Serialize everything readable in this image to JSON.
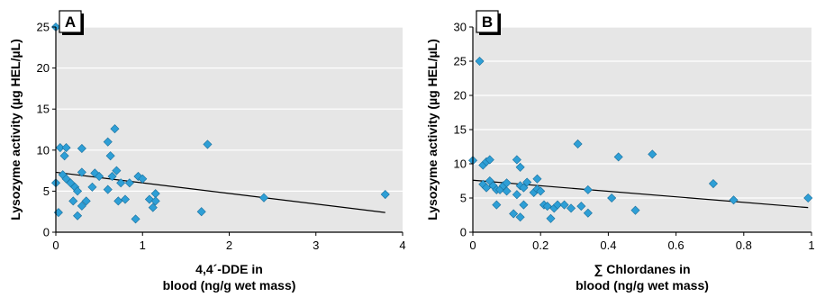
{
  "chart_data": [
    {
      "type": "scatter",
      "panel_label": "A",
      "xlabel_line1": "4,4´-DDE in",
      "xlabel_line2": "blood (ng/g wet mass)",
      "ylabel": "Lysozyme activity (µg HEL/µL)",
      "xlim": [
        0,
        4
      ],
      "ylim": [
        0,
        25
      ],
      "xticks": [
        "0",
        "1",
        "2",
        "3",
        "4"
      ],
      "yticks": [
        "0",
        "5",
        "10",
        "15",
        "20",
        "25"
      ],
      "grid": "horizontal",
      "point_color": "#2e9fd6",
      "plot_bg": "#e6e6e6",
      "trendline": {
        "x": [
          0,
          3.8
        ],
        "y": [
          7.3,
          2.4
        ]
      },
      "points": [
        {
          "x": 0.0,
          "y": 25.0
        },
        {
          "x": 0.0,
          "y": 6.0
        },
        {
          "x": 0.03,
          "y": 2.4
        },
        {
          "x": 0.05,
          "y": 10.3
        },
        {
          "x": 0.08,
          "y": 7.0
        },
        {
          "x": 0.1,
          "y": 9.3
        },
        {
          "x": 0.12,
          "y": 10.3
        },
        {
          "x": 0.12,
          "y": 6.5
        },
        {
          "x": 0.17,
          "y": 6.0
        },
        {
          "x": 0.2,
          "y": 3.8
        },
        {
          "x": 0.22,
          "y": 5.5
        },
        {
          "x": 0.25,
          "y": 5.0
        },
        {
          "x": 0.25,
          "y": 2.0
        },
        {
          "x": 0.3,
          "y": 7.3
        },
        {
          "x": 0.3,
          "y": 10.2
        },
        {
          "x": 0.3,
          "y": 3.2
        },
        {
          "x": 0.35,
          "y": 3.8
        },
        {
          "x": 0.42,
          "y": 5.5
        },
        {
          "x": 0.45,
          "y": 7.2
        },
        {
          "x": 0.5,
          "y": 6.8
        },
        {
          "x": 0.6,
          "y": 11.0
        },
        {
          "x": 0.6,
          "y": 5.2
        },
        {
          "x": 0.63,
          "y": 9.3
        },
        {
          "x": 0.65,
          "y": 6.8
        },
        {
          "x": 0.68,
          "y": 12.6
        },
        {
          "x": 0.7,
          "y": 7.5
        },
        {
          "x": 0.72,
          "y": 3.8
        },
        {
          "x": 0.75,
          "y": 6.0
        },
        {
          "x": 0.8,
          "y": 4.0
        },
        {
          "x": 0.85,
          "y": 6.0
        },
        {
          "x": 0.92,
          "y": 1.6
        },
        {
          "x": 0.95,
          "y": 6.8
        },
        {
          "x": 1.0,
          "y": 6.5
        },
        {
          "x": 1.08,
          "y": 4.0
        },
        {
          "x": 1.12,
          "y": 3.0
        },
        {
          "x": 1.15,
          "y": 4.7
        },
        {
          "x": 1.15,
          "y": 3.8
        },
        {
          "x": 1.68,
          "y": 2.5
        },
        {
          "x": 1.75,
          "y": 10.7
        },
        {
          "x": 2.4,
          "y": 4.2
        },
        {
          "x": 3.8,
          "y": 4.6
        }
      ]
    },
    {
      "type": "scatter",
      "panel_label": "B",
      "xlabel_line1": "∑ Chlordanes in",
      "xlabel_line2": "blood (ng/g wet mass)",
      "ylabel": "Lysozyme activity (µg HEL/µL)",
      "xlim": [
        0,
        1
      ],
      "ylim": [
        0,
        30
      ],
      "xticks": [
        "0",
        "0.2",
        "0.4",
        "0.6",
        "0.8",
        "1"
      ],
      "yticks": [
        "0",
        "5",
        "10",
        "15",
        "20",
        "25",
        "30"
      ],
      "grid": "horizontal",
      "point_color": "#2e9fd6",
      "plot_bg": "#e6e6e6",
      "trendline": {
        "x": [
          0,
          0.99
        ],
        "y": [
          7.6,
          3.6
        ]
      },
      "points": [
        {
          "x": 0.0,
          "y": 10.5
        },
        {
          "x": 0.02,
          "y": 25.0
        },
        {
          "x": 0.03,
          "y": 7.0
        },
        {
          "x": 0.03,
          "y": 9.8
        },
        {
          "x": 0.04,
          "y": 6.5
        },
        {
          "x": 0.04,
          "y": 10.3
        },
        {
          "x": 0.05,
          "y": 10.6
        },
        {
          "x": 0.05,
          "y": 7.5
        },
        {
          "x": 0.06,
          "y": 6.8
        },
        {
          "x": 0.07,
          "y": 4.0
        },
        {
          "x": 0.07,
          "y": 6.2
        },
        {
          "x": 0.08,
          "y": 6.2
        },
        {
          "x": 0.09,
          "y": 6.8
        },
        {
          "x": 0.1,
          "y": 7.2
        },
        {
          "x": 0.1,
          "y": 6.0
        },
        {
          "x": 0.12,
          "y": 2.7
        },
        {
          "x": 0.13,
          "y": 10.6
        },
        {
          "x": 0.13,
          "y": 5.5
        },
        {
          "x": 0.14,
          "y": 9.5
        },
        {
          "x": 0.14,
          "y": 6.8
        },
        {
          "x": 0.14,
          "y": 2.2
        },
        {
          "x": 0.15,
          "y": 4.0
        },
        {
          "x": 0.15,
          "y": 6.5
        },
        {
          "x": 0.16,
          "y": 7.3
        },
        {
          "x": 0.18,
          "y": 5.8
        },
        {
          "x": 0.19,
          "y": 7.8
        },
        {
          "x": 0.19,
          "y": 6.3
        },
        {
          "x": 0.2,
          "y": 6.0
        },
        {
          "x": 0.21,
          "y": 4.0
        },
        {
          "x": 0.22,
          "y": 3.8
        },
        {
          "x": 0.23,
          "y": 2.0
        },
        {
          "x": 0.24,
          "y": 3.5
        },
        {
          "x": 0.25,
          "y": 4.0
        },
        {
          "x": 0.27,
          "y": 4.0
        },
        {
          "x": 0.29,
          "y": 3.5
        },
        {
          "x": 0.31,
          "y": 12.9
        },
        {
          "x": 0.32,
          "y": 3.8
        },
        {
          "x": 0.34,
          "y": 2.8
        },
        {
          "x": 0.34,
          "y": 6.2
        },
        {
          "x": 0.41,
          "y": 5.0
        },
        {
          "x": 0.43,
          "y": 11.0
        },
        {
          "x": 0.48,
          "y": 3.2
        },
        {
          "x": 0.53,
          "y": 11.4
        },
        {
          "x": 0.71,
          "y": 7.1
        },
        {
          "x": 0.77,
          "y": 4.7
        },
        {
          "x": 0.99,
          "y": 5.0
        }
      ]
    }
  ]
}
